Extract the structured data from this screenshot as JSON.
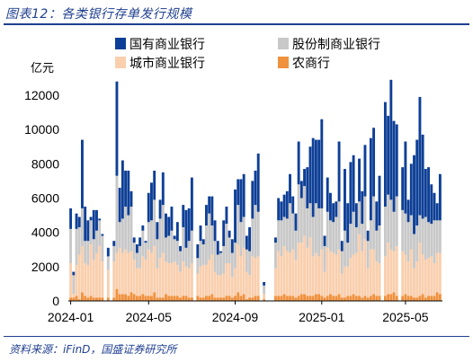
{
  "title": "图表12：各类银行存单发行规模",
  "source": "资料来源：iFinD，国盛证券研究所",
  "chart_data": {
    "type": "bar",
    "stacked": true,
    "ylabel": "亿元",
    "ylim": [
      0,
      12000
    ],
    "yticks": [
      0,
      2000,
      4000,
      6000,
      8000,
      10000,
      12000
    ],
    "xtick_labels": [
      "2024-01",
      "2024-05",
      "2024-09",
      "2025-01",
      "2025-05"
    ],
    "xtick_index": [
      0,
      27,
      57,
      87,
      116
    ],
    "legend_position": "top",
    "series": [
      {
        "name": "国有商业银行",
        "color": "#0e3f96",
        "values": [
          1200,
          200,
          900,
          600,
          4000,
          2000,
          1200,
          200,
          1700,
          1200,
          100,
          100,
          0,
          500,
          0,
          300,
          5500,
          2000,
          3400,
          2100,
          2600,
          900,
          300,
          500,
          500,
          300,
          100,
          1700,
          2200,
          1700,
          1000,
          1100,
          1900,
          1400,
          1100,
          1400,
          200,
          1100,
          300,
          1300,
          2200,
          1900,
          3100,
          0,
          800,
          900,
          300,
          1200,
          1000,
          1700,
          1200,
          800,
          100,
          1500,
          1000,
          400,
          800,
          3100,
          1500,
          2500,
          2500,
          800,
          1400,
          2200,
          2000,
          3400,
          0,
          200,
          0,
          0,
          0,
          300,
          1300,
          1100,
          1300,
          1600,
          1700,
          1000,
          1000,
          2500,
          1000,
          1000,
          2400,
          3300,
          4600,
          3700,
          4000,
          5200,
          600,
          2000,
          1600,
          1100,
          900,
          3500,
          600,
          3600,
          2300,
          3600,
          3300,
          1400,
          2500,
          1900,
          3000,
          600,
          4800,
          4000,
          1700,
          2900,
          0,
          6100,
          4600,
          7000,
          5300,
          4200,
          0,
          2500,
          4200,
          1300,
          3000,
          4600,
          5000,
          6900,
          4900,
          2800,
          3200,
          2300,
          1600,
          1000,
          2700
        ]
      },
      {
        "name": "股份制商业银行",
        "color": "#c8c8c8",
        "values": [
          2000,
          1100,
          2100,
          1600,
          2200,
          1300,
          1400,
          1400,
          1200,
          1300,
          1500,
          1500,
          0,
          800,
          0,
          900,
          4500,
          1500,
          2000,
          2500,
          2200,
          2600,
          1000,
          900,
          1300,
          1500,
          1000,
          1600,
          1900,
          2700,
          1700,
          2300,
          2800,
          1400,
          1600,
          1900,
          1300,
          1400,
          1200,
          2000,
          1100,
          1600,
          1900,
          0,
          900,
          1500,
          1200,
          2300,
          2700,
          1700,
          1800,
          1200,
          1300,
          1600,
          2300,
          1500,
          1400,
          1500,
          2300,
          2000,
          1800,
          1300,
          1400,
          2200,
          3100,
          2600,
          0,
          500,
          0,
          0,
          0,
          1500,
          1800,
          2100,
          1700,
          1900,
          2900,
          2100,
          1700,
          3400,
          2600,
          2900,
          2300,
          2000,
          2300,
          2900,
          2800,
          2400,
          1500,
          2100,
          1800,
          1800,
          2200,
          2800,
          1300,
          2100,
          1400,
          2000,
          2500,
          1500,
          1900,
          1600,
          2500,
          1600,
          1700,
          3100,
          1800,
          2200,
          0,
          2900,
          2800,
          2900,
          2300,
          2900,
          0,
          2400,
          2400,
          2300,
          2000,
          2000,
          2100,
          1600,
          2100,
          2500,
          2100,
          1900,
          2500,
          1900,
          1900
        ]
      },
      {
        "name": "城市商业银行",
        "color": "#f9cfae",
        "values": [
          2000,
          200,
          1800,
          2600,
          2700,
          1900,
          1900,
          3000,
          2200,
          2600,
          3000,
          2100,
          0,
          1600,
          0,
          2100,
          2100,
          2700,
          2400,
          2600,
          2500,
          2400,
          2000,
          1600,
          1600,
          2200,
          2100,
          2700,
          2500,
          2700,
          1700,
          2300,
          2600,
          1900,
          1900,
          1900,
          2000,
          1800,
          1500,
          2000,
          1700,
          1700,
          2000,
          0,
          1300,
          1800,
          1900,
          1800,
          2100,
          2300,
          1500,
          1300,
          1300,
          1400,
          1900,
          1900,
          1200,
          1600,
          2800,
          2300,
          2700,
          1600,
          1300,
          2400,
          2200,
          2300,
          0,
          300,
          0,
          0,
          0,
          1600,
          2600,
          2300,
          2800,
          2600,
          2500,
          2700,
          2200,
          3100,
          3000,
          3400,
          2800,
          3400,
          2300,
          2400,
          2200,
          2700,
          1500,
          2800,
          2500,
          2500,
          2400,
          2600,
          1400,
          1800,
          1700,
          2200,
          2300,
          2500,
          3600,
          2700,
          3300,
          1700,
          2700,
          2600,
          2000,
          1900,
          0,
          2300,
          3000,
          2600,
          2400,
          2900,
          0,
          2600,
          2300,
          2000,
          2700,
          1700,
          2100,
          3100,
          2300,
          2200,
          2200,
          2300,
          1900,
          2300,
          2400
        ]
      },
      {
        "name": "农商行",
        "color": "#f0913e",
        "values": [
          200,
          200,
          300,
          100,
          500,
          300,
          200,
          300,
          200,
          200,
          200,
          200,
          0,
          200,
          0,
          200,
          700,
          400,
          400,
          400,
          300,
          500,
          400,
          300,
          300,
          400,
          300,
          300,
          300,
          500,
          200,
          200,
          200,
          400,
          300,
          300,
          300,
          300,
          200,
          300,
          300,
          200,
          200,
          0,
          300,
          200,
          200,
          300,
          300,
          400,
          200,
          200,
          200,
          200,
          300,
          300,
          200,
          300,
          500,
          300,
          400,
          100,
          200,
          200,
          300,
          300,
          0,
          100,
          0,
          0,
          0,
          300,
          300,
          300,
          400,
          300,
          300,
          300,
          200,
          300,
          400,
          400,
          300,
          300,
          300,
          400,
          400,
          300,
          200,
          300,
          400,
          300,
          300,
          400,
          200,
          200,
          300,
          300,
          400,
          300,
          300,
          200,
          300,
          200,
          300,
          400,
          300,
          300,
          0,
          300,
          400,
          400,
          500,
          300,
          0,
          300,
          400,
          300,
          300,
          200,
          200,
          300,
          400,
          200,
          300,
          300,
          300,
          500,
          400
        ]
      }
    ]
  }
}
